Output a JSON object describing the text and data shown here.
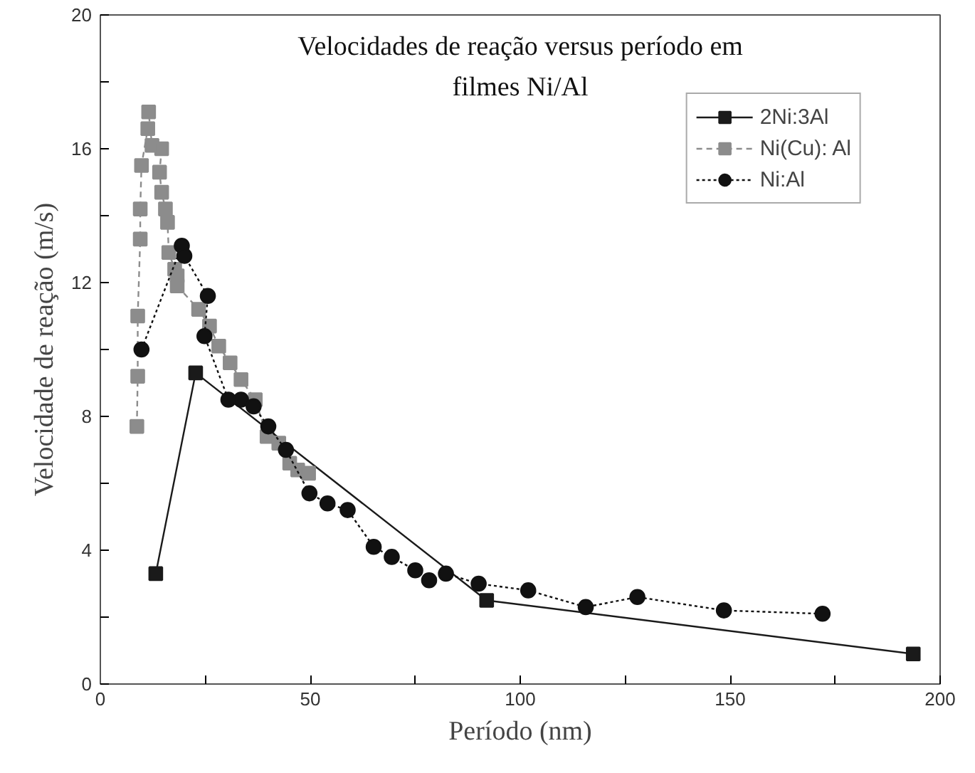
{
  "chart_data": {
    "type": "line",
    "title": "Velocidades de reação versus período em\nfilmes Ni/Al",
    "xlabel": "Período (nm)",
    "ylabel": "Velocidade de reação (m/s)",
    "xlim": [
      0,
      200
    ],
    "ylim": [
      0,
      20
    ],
    "xticks": [
      0,
      {
        "value": 25,
        "label": null
      },
      50,
      {
        "value": 75,
        "label": null
      },
      100,
      {
        "value": 125,
        "label": null
      },
      150,
      {
        "value": 175,
        "label": null
      },
      200
    ],
    "yticks": [
      0,
      {
        "value": 2,
        "label": null
      },
      4,
      {
        "value": 6,
        "label": null
      },
      8,
      {
        "value": 10,
        "label": null
      },
      12,
      {
        "value": 14,
        "label": null
      },
      16,
      {
        "value": 18,
        "label": null
      },
      20
    ],
    "grid": false,
    "legend": "top right",
    "series": [
      {
        "name": "2Ni:3Al",
        "color": "#1a1a1a",
        "marker": "square",
        "line_style": "solid",
        "x": [
          13.2,
          22.7,
          92,
          193.6
        ],
        "values": [
          3.3,
          9.3,
          2.5,
          0.9
        ]
      },
      {
        "name": "Ni(Cu): Al",
        "color": "#8c8c8c",
        "marker": "square",
        "line_style": "dashed",
        "x": [
          8.7,
          8.9,
          8.9,
          9.5,
          9.5,
          9.8,
          11.3,
          11.5,
          12.3,
          14.6,
          14.1,
          14.6,
          15.5,
          16.0,
          16.3,
          17.7,
          18.3,
          18.3,
          23.4,
          26.0,
          28.2,
          30.9,
          33.5,
          36.9,
          39.7,
          42.5,
          45.1,
          47.0,
          49.6
        ],
        "values": [
          7.7,
          9.2,
          11.0,
          13.3,
          14.2,
          15.5,
          16.6,
          17.1,
          16.1,
          16.0,
          15.3,
          14.7,
          14.2,
          13.8,
          12.9,
          12.4,
          12.2,
          11.9,
          11.2,
          10.7,
          10.1,
          9.6,
          9.1,
          8.5,
          7.4,
          7.2,
          6.6,
          6.4,
          6.3
        ]
      },
      {
        "name": "Ni:Al",
        "color": "#111111",
        "marker": "circle",
        "line_style": "dotted",
        "x": [
          9.8,
          19.4,
          20.0,
          25.6,
          24.8,
          30.5,
          33.5,
          36.5,
          40.0,
          44.2,
          49.8,
          54.1,
          58.9,
          65.1,
          69.4,
          75.0,
          78.3,
          82.3,
          90.1,
          101.9,
          115.6,
          127.9,
          148.5,
          172
        ],
        "values": [
          10.0,
          13.1,
          12.8,
          11.6,
          10.4,
          8.5,
          8.5,
          8.3,
          7.7,
          7.0,
          5.7,
          5.4,
          5.2,
          4.1,
          3.8,
          3.4,
          3.1,
          3.3,
          3.0,
          2.8,
          2.3,
          2.6,
          2.2,
          2.1
        ]
      }
    ]
  }
}
